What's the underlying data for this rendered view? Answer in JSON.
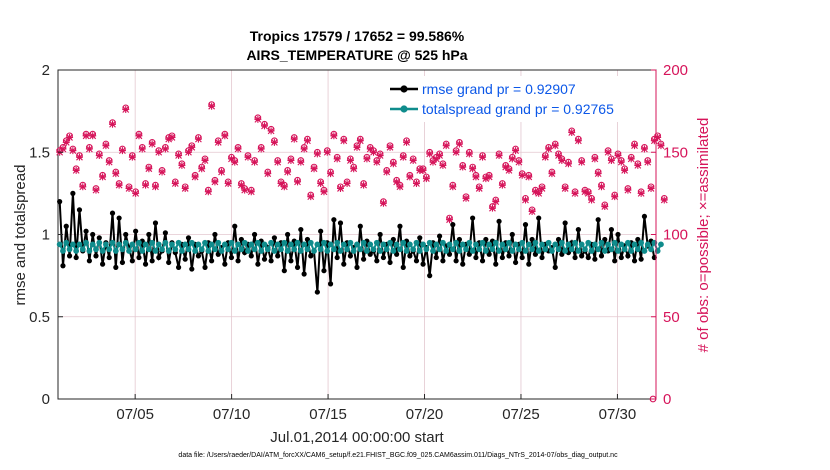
{
  "chart_data": {
    "type": "line",
    "title": "Tropics 17579 / 17652 = 99.586%",
    "subtitle": "AIRS_TEMPERATURE @ 525 hPa",
    "xlabel": "Jul.01,2014 00:00:00 start",
    "ylabel_left": "rmse and totalspread",
    "ylabel_right": "# of obs: o=possible; ×=assimilated",
    "footer": "data file: /Users/raeder/DAI/ATM_forcXX/CAM6_setup/f.e21.FHIST_BGC.f09_025.CAM6assim.011/Diags_NTrS_2014-07/obs_diag_output.nc",
    "x_range_days": [
      1,
      32
    ],
    "x_ticks": [
      {
        "day": 5,
        "label": "07/05"
      },
      {
        "day": 10,
        "label": "07/10"
      },
      {
        "day": 15,
        "label": "07/15"
      },
      {
        "day": 20,
        "label": "07/20"
      },
      {
        "day": 25,
        "label": "07/25"
      },
      {
        "day": 30,
        "label": "07/30"
      }
    ],
    "ylim_left": [
      0,
      2
    ],
    "y_ticks_left": [
      "0",
      "0.5",
      "1",
      "1.5",
      "2"
    ],
    "ylim_right": [
      0,
      200
    ],
    "y_ticks_right": [
      "0",
      "50",
      "100",
      "150",
      "200"
    ],
    "grid": true,
    "legend_position": "top-right",
    "colors": {
      "rmse": "#000000",
      "totalspread": "#0f8c8c",
      "obs": "#d6145a",
      "legend_text": "#0b57e8"
    },
    "series": [
      {
        "name": "rmse grand pr = 0.92907",
        "axis": "left",
        "style": "line-marker",
        "values": [
          1.2,
          0.81,
          1.05,
          0.87,
          1.25,
          0.86,
          1.15,
          0.9,
          1.02,
          0.84,
          1.0,
          0.87,
          0.98,
          0.82,
          0.95,
          0.86,
          1.13,
          0.8,
          1.1,
          0.83,
          1.0,
          0.92,
          0.84,
          1.02,
          0.86,
          0.96,
          0.82,
          1.0,
          0.84,
          1.07,
          0.86,
          0.9,
          1.01,
          0.83,
          0.95,
          0.89,
          0.8,
          0.94,
          0.85,
          0.98,
          0.79,
          0.94,
          0.87,
          0.9,
          0.8,
          0.95,
          0.84,
          1.0,
          0.88,
          0.92,
          0.82,
          0.95,
          0.86,
          1.05,
          0.84,
          0.97,
          0.89,
          0.94,
          0.87,
          1.0,
          0.82,
          0.96,
          0.85,
          0.92,
          0.84,
          0.98,
          0.87,
          0.95,
          0.78,
          1.0,
          0.84,
          0.96,
          0.8,
          1.03,
          0.76,
          0.97,
          0.87,
          0.9,
          0.65,
          1.02,
          0.78,
          0.95,
          0.7,
          1.09,
          0.86,
          1.07,
          0.82,
          0.95,
          0.87,
          0.92,
          0.8,
          1.05,
          0.85,
          0.96,
          0.88,
          0.9,
          0.84,
          1.0,
          0.86,
          0.94,
          0.83,
          0.97,
          0.88,
          1.05,
          0.8,
          0.96,
          0.87,
          0.9,
          0.84,
          0.98,
          0.82,
          0.92,
          0.75,
          0.95,
          0.86,
          0.99,
          0.84,
          0.93,
          0.88,
          1.06,
          0.84,
          0.97,
          0.82,
          0.94,
          0.88,
          1.1,
          0.86,
          0.95,
          0.84,
          0.97,
          0.88,
          0.96,
          0.82,
          1.08,
          0.86,
          0.95,
          0.87,
          1.0,
          0.83,
          0.94,
          0.86,
          1.06,
          0.82,
          0.97,
          0.88,
          1.1,
          0.86,
          0.94,
          0.9,
          0.92,
          0.8,
          0.97,
          0.88,
          1.07,
          0.89,
          0.95,
          0.86,
          1.03,
          0.87,
          0.9,
          0.86,
          0.94,
          0.85,
          1.09,
          0.87,
          0.97,
          0.9,
          1.03,
          0.84,
          1.0,
          0.86,
          0.93,
          0.87,
          0.95,
          0.84,
          0.97,
          0.85,
          1.11,
          0.93,
          0.96,
          0.86
        ]
      },
      {
        "name": "totalspread grand pr = 0.92765",
        "axis": "left",
        "style": "line-marker",
        "values": [
          0.94,
          0.9,
          0.95,
          0.91,
          0.94,
          0.9,
          0.94,
          0.91,
          0.95,
          0.9,
          0.94,
          0.91,
          0.95,
          0.9,
          0.94,
          0.91,
          0.95,
          0.9,
          0.94,
          0.91,
          0.95,
          0.9,
          0.94,
          0.91,
          0.95,
          0.9,
          0.94,
          0.91,
          0.95,
          0.9,
          0.94,
          0.91,
          0.95,
          0.9,
          0.94,
          0.91,
          0.95,
          0.9,
          0.94,
          0.91,
          0.95,
          0.9,
          0.94,
          0.91,
          0.95,
          0.9,
          0.94,
          0.91,
          0.95,
          0.9,
          0.94,
          0.91,
          0.95,
          0.9,
          0.94,
          0.91,
          0.95,
          0.9,
          0.94,
          0.91,
          0.95,
          0.9,
          0.94,
          0.91,
          0.95,
          0.9,
          0.94,
          0.91,
          0.95,
          0.9,
          0.94,
          0.91,
          0.95,
          0.9,
          0.94,
          0.91,
          0.95,
          0.9,
          0.94,
          0.91,
          0.95,
          0.9,
          0.94,
          0.91,
          0.95,
          0.9,
          0.94,
          0.91,
          0.95,
          0.9,
          0.94,
          0.91,
          0.95,
          0.9,
          0.94,
          0.91,
          0.95,
          0.9,
          0.94,
          0.91,
          0.95,
          0.9,
          0.94,
          0.91,
          0.95,
          0.9,
          0.94,
          0.91,
          0.95,
          0.9,
          0.94,
          0.91,
          0.95,
          0.9,
          0.94,
          0.91,
          0.95,
          0.9,
          0.94,
          0.91,
          0.95,
          0.9,
          0.94,
          0.91,
          0.95,
          0.9,
          0.94,
          0.91,
          0.95,
          0.9,
          0.94,
          0.91,
          0.95,
          0.9,
          0.94,
          0.91,
          0.95,
          0.9,
          0.94,
          0.91,
          0.95,
          0.9,
          0.94,
          0.91,
          0.95,
          0.9,
          0.94,
          0.91,
          0.95,
          0.9,
          0.94,
          0.91,
          0.95,
          0.9,
          0.94,
          0.91,
          0.95,
          0.9,
          0.94,
          0.91,
          0.95,
          0.9,
          0.94,
          0.91,
          0.95,
          0.9,
          0.94,
          0.91,
          0.95,
          0.9,
          0.94,
          0.91,
          0.95,
          0.9,
          0.94,
          0.91,
          0.95,
          0.9,
          0.94,
          0.91,
          0.95,
          0.9,
          0.94
        ]
      },
      {
        "name": "obs possible",
        "axis": "right",
        "style": "marker-o",
        "values": [
          151,
          153,
          157,
          160,
          152,
          140,
          148,
          130,
          161,
          153,
          161,
          128,
          149,
          136,
          155,
          145,
          168,
          138,
          131,
          152,
          177,
          129,
          148,
          126,
          161,
          153,
          131,
          141,
          156,
          130,
          151,
          139,
          153,
          159,
          160,
          132,
          149,
          143,
          129,
          151,
          154,
          136,
          159,
          141,
          146,
          127,
          179,
          133,
          157,
          139,
          161,
          132,
          147,
          145,
          153,
          131,
          128,
          148,
          127,
          145,
          171,
          153,
          167,
          138,
          164,
          157,
          145,
          132,
          130,
          139,
          146,
          159,
          133,
          145,
          153,
          158,
          124,
          141,
          150,
          132,
          127,
          151,
          138,
          161,
          147,
          129,
          158,
          132,
          146,
          141,
          154,
          158,
          131,
          147,
          153,
          151,
          145,
          149,
          120,
          139,
          154,
          144,
          133,
          130,
          148,
          157,
          136,
          146,
          132,
          140,
          140,
          135,
          150,
          145,
          147,
          149,
          143,
          155,
          110,
          130,
          151,
          156,
          142,
          123,
          150,
          141,
          136,
          129,
          148,
          135,
          136,
          117,
          121,
          149,
          131,
          142,
          140,
          147,
          152,
          145,
          137,
          122,
          136,
          115,
          127,
          126,
          129,
          148,
          153,
          138,
          155,
          149,
          146,
          129,
          144,
          163,
          126,
          158,
          145,
          127,
          126,
          122,
          147,
          138,
          130,
          118,
          151,
          146,
          124,
          149,
          145,
          140,
          128,
          147,
          155,
          143,
          126,
          153,
          145,
          129,
          158,
          160,
          155,
          122
        ]
      },
      {
        "name": "obs assimilated",
        "axis": "right",
        "style": "marker-x",
        "values": [
          150,
          152,
          156,
          159,
          151,
          139,
          147,
          129,
          160,
          152,
          160,
          127,
          148,
          135,
          154,
          144,
          167,
          137,
          130,
          151,
          176,
          128,
          147,
          125,
          160,
          152,
          130,
          140,
          155,
          129,
          150,
          138,
          152,
          158,
          159,
          131,
          148,
          142,
          128,
          150,
          153,
          135,
          158,
          140,
          145,
          126,
          178,
          132,
          156,
          138,
          160,
          131,
          146,
          144,
          152,
          130,
          127,
          147,
          126,
          144,
          170,
          152,
          166,
          137,
          163,
          156,
          144,
          131,
          129,
          138,
          145,
          158,
          132,
          144,
          152,
          157,
          123,
          140,
          149,
          131,
          126,
          150,
          137,
          160,
          146,
          128,
          157,
          131,
          145,
          140,
          153,
          157,
          130,
          146,
          152,
          150,
          144,
          148,
          119,
          138,
          153,
          143,
          132,
          129,
          147,
          156,
          135,
          145,
          131,
          139,
          139,
          134,
          149,
          144,
          146,
          148,
          142,
          154,
          109,
          129,
          150,
          155,
          141,
          122,
          149,
          140,
          135,
          128,
          147,
          134,
          135,
          116,
          120,
          148,
          130,
          141,
          139,
          146,
          151,
          144,
          136,
          121,
          135,
          114,
          126,
          125,
          128,
          147,
          152,
          137,
          154,
          148,
          145,
          128,
          143,
          162,
          125,
          157,
          144,
          126,
          125,
          121,
          146,
          137,
          129,
          117,
          150,
          145,
          123,
          148,
          144,
          139,
          127,
          146,
          154,
          142,
          125,
          152,
          144,
          128,
          157,
          159,
          154,
          121
        ]
      }
    ]
  }
}
